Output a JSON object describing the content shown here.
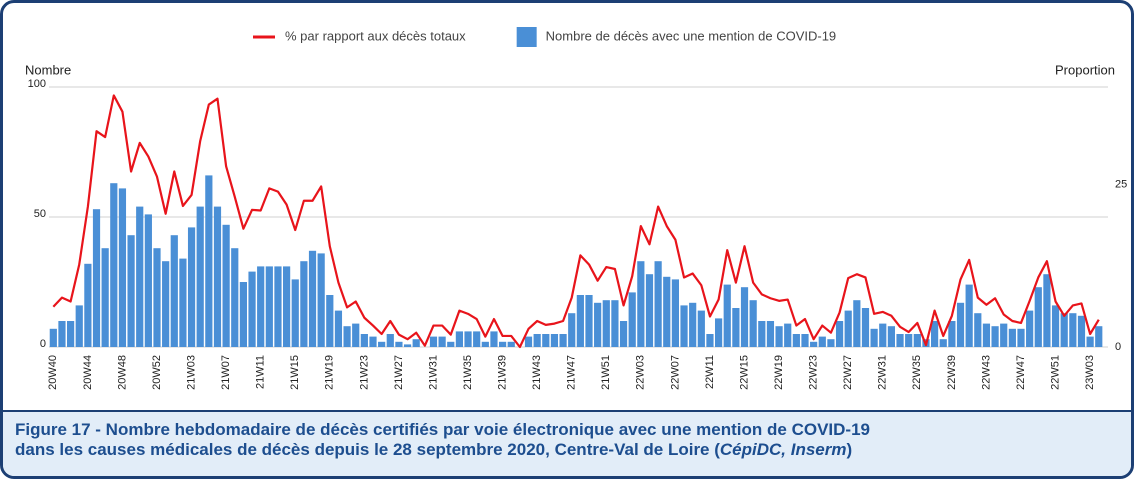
{
  "chart_data": {
    "type": "bar",
    "y_label": "Nombre",
    "y2_label": "Proportion",
    "ylim": [
      0,
      100
    ],
    "yticks": [
      0,
      50,
      100
    ],
    "y2lim": [
      0,
      40
    ],
    "y2ticks": [
      0,
      25
    ],
    "grid": true,
    "legend": "top",
    "categories": [
      "20W40",
      null,
      null,
      null,
      "20W44",
      null,
      null,
      null,
      "20W48",
      null,
      null,
      null,
      "20W52",
      null,
      null,
      null,
      "21W03",
      null,
      null,
      null,
      "21W07",
      null,
      null,
      null,
      "21W11",
      null,
      null,
      null,
      "21W15",
      null,
      null,
      null,
      "21W19",
      null,
      null,
      null,
      "21W23",
      null,
      null,
      null,
      "21W27",
      null,
      null,
      null,
      "21W31",
      null,
      null,
      null,
      "21W35",
      null,
      null,
      null,
      "21W39",
      null,
      null,
      null,
      "21W43",
      null,
      null,
      null,
      "21W47",
      null,
      null,
      null,
      "21W51",
      null,
      null,
      null,
      "22W03",
      null,
      null,
      null,
      "22W07",
      null,
      null,
      null,
      "22W11",
      null,
      null,
      null,
      "22W15",
      null,
      null,
      null,
      "22W19",
      null,
      null,
      null,
      "22W23",
      null,
      null,
      null,
      "22W27",
      null,
      null,
      null,
      "22W31",
      null,
      null,
      null,
      "22W35",
      null,
      null,
      null,
      "22W39",
      null,
      null,
      null,
      "22W43",
      null,
      null,
      null,
      "22W47",
      null,
      null,
      null,
      "22W51",
      null,
      null,
      null,
      "23W03",
      null
    ],
    "series": [
      {
        "name": "% par rapport aux décès totaux",
        "type": "line",
        "axis": "y2",
        "color": "#e8141b",
        "values": [
          6.2,
          7.6,
          7,
          12.7,
          21.6,
          33.2,
          32.3,
          38.7,
          36.2,
          27,
          31.4,
          29.3,
          26.2,
          20.5,
          27,
          21.7,
          23.4,
          31.7,
          37.3,
          38.2,
          27.8,
          23.1,
          18.2,
          21.1,
          21,
          24.4,
          23.9,
          21.9,
          18,
          22.5,
          22.5,
          24.7,
          15.5,
          9.9,
          6.1,
          7,
          4.5,
          3.3,
          2,
          4,
          1.9,
          1.2,
          2.2,
          0.2,
          3.3,
          3.3,
          1.9,
          5.6,
          5.1,
          4.3,
          1.6,
          4.3,
          1.7,
          1.7,
          0,
          2.8,
          4,
          3.4,
          3.6,
          4,
          7.6,
          14.1,
          12.7,
          10.2,
          12.3,
          12,
          6.4,
          10.9,
          18.6,
          15.8,
          21.6,
          18.6,
          16.5,
          10.7,
          11.3,
          9.5,
          4.7,
          7.3,
          14.9,
          9.9,
          15.5,
          9.9,
          8.1,
          7.5,
          7.1,
          7.3,
          3.3,
          4.3,
          1.2,
          3.3,
          2.2,
          5.3,
          10.6,
          11.2,
          10.7,
          5.1,
          5.4,
          4.8,
          3.1,
          2.3,
          3.7,
          0.3,
          5.6,
          1.7,
          4.8,
          10.4,
          13.4,
          7.6,
          6.5,
          7.5,
          5,
          4,
          3.7,
          7.1,
          10.7,
          13.2,
          7,
          4.8,
          6.4,
          6.7,
          2,
          4.2
        ]
      },
      {
        "name": "Nombre de décès avec une mention de COVID-19",
        "type": "bar",
        "color": "#4a8fd6",
        "values": [
          7,
          10,
          10,
          16,
          32,
          53,
          38,
          63,
          61,
          43,
          54,
          51,
          38,
          33,
          43,
          34,
          46,
          54,
          66,
          54,
          47,
          38,
          25,
          29,
          31,
          31,
          31,
          31,
          26,
          33,
          37,
          36,
          20,
          14,
          8,
          9,
          5,
          4,
          2,
          5,
          2,
          1,
          3,
          0,
          4,
          4,
          2,
          6,
          6,
          6,
          2,
          6,
          2,
          2,
          0,
          4,
          5,
          5,
          5,
          5,
          13,
          20,
          20,
          17,
          18,
          18,
          10,
          21,
          33,
          28,
          33,
          27,
          26,
          16,
          17,
          14,
          5,
          11,
          24,
          15,
          23,
          18,
          10,
          10,
          8,
          9,
          5,
          5,
          2,
          4,
          3,
          10,
          14,
          18,
          15,
          7,
          9,
          8,
          5,
          5,
          5,
          3,
          10,
          3,
          10,
          17,
          24,
          13,
          9,
          8,
          9,
          7,
          7,
          14,
          23,
          28,
          16,
          13,
          13,
          12,
          4,
          8
        ]
      }
    ],
    "caption": [
      "Figure 17 - Nombre hebdomadaire de décès  certifiés par voie électronique avec une mention de COVID-19",
      "dans les causes médicales de décès depuis le 28 septembre 2020, Centre-Val de Loire (",
      "CépiDC, Inserm",
      ")"
    ]
  }
}
